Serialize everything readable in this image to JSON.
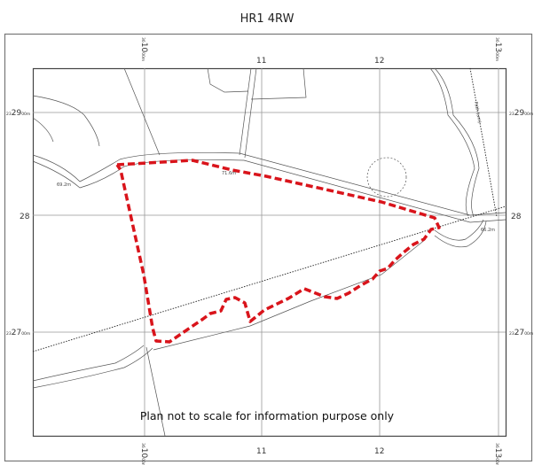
{
  "title": "HR1 4RW",
  "note": "Plan not to scale for information purpose only",
  "grid": {
    "easting_prefix": "36",
    "northing_prefix": "23",
    "unit_suffix": "00m",
    "eastings": [
      "10",
      "11",
      "12",
      "13"
    ],
    "northings": [
      "29",
      "28",
      "27"
    ]
  },
  "map_labels": {
    "height_west": "69.2m",
    "height_mid": "71.6m",
    "height_east": "66.2m",
    "path": "Path (um)"
  },
  "colors": {
    "boundary": "#d9141b",
    "grid": "#999999",
    "lines": "#555555"
  }
}
